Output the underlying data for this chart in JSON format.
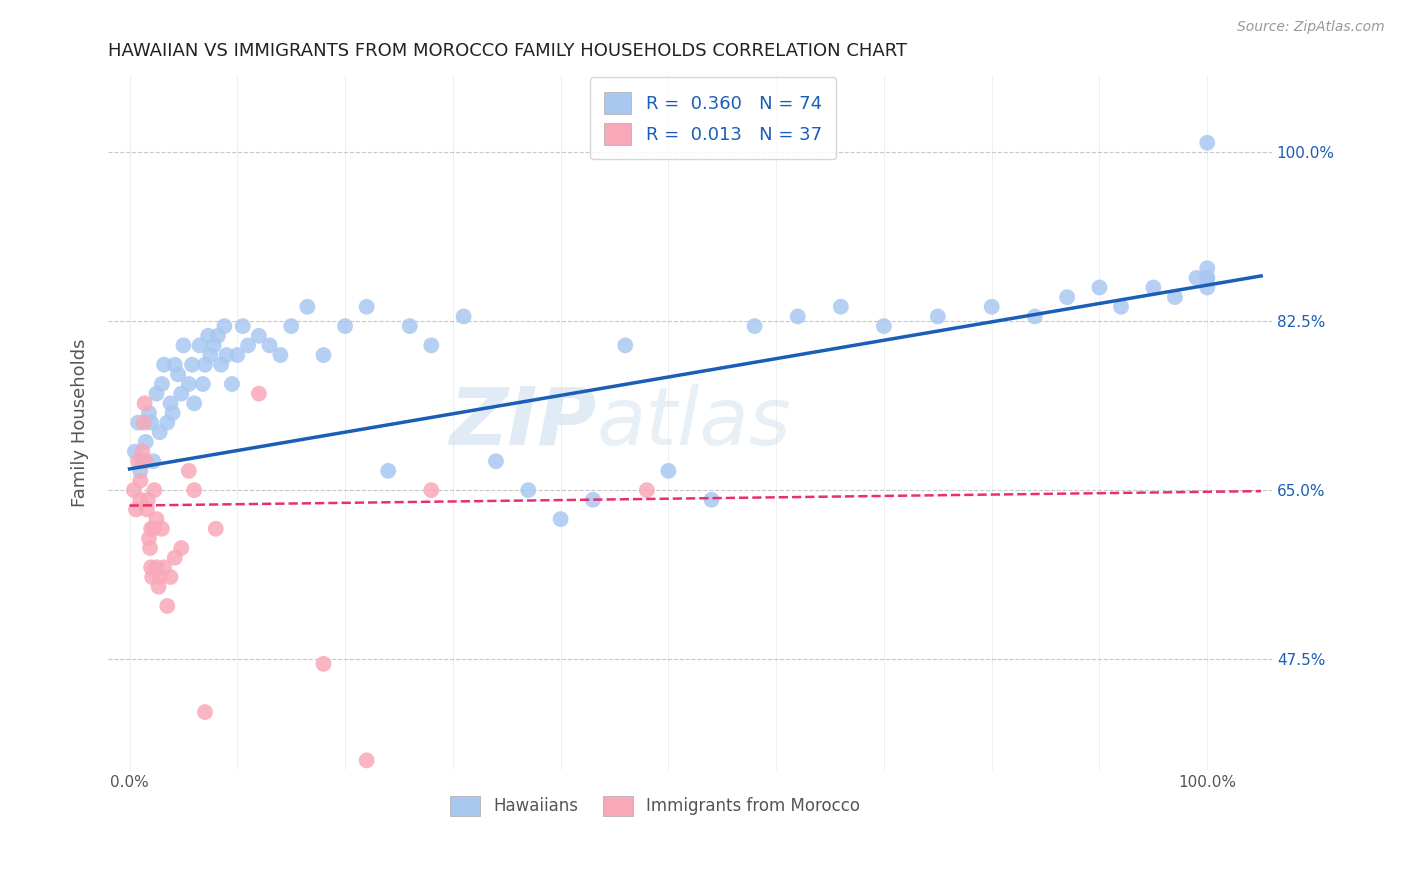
{
  "title": "HAWAIIAN VS IMMIGRANTS FROM MOROCCO FAMILY HOUSEHOLDS CORRELATION CHART",
  "source": "Source: ZipAtlas.com",
  "ylabel": "Family Households",
  "xlabel": "",
  "x_ticks": [
    0.0,
    0.1,
    0.2,
    0.3,
    0.4,
    0.5,
    0.6,
    0.7,
    0.8,
    0.9,
    1.0
  ],
  "y_tick_labels": [
    "47.5%",
    "65.0%",
    "82.5%",
    "100.0%"
  ],
  "y_ticks": [
    0.475,
    0.65,
    0.825,
    1.0
  ],
  "xlim": [
    -0.02,
    1.06
  ],
  "ylim": [
    0.36,
    1.08
  ],
  "legend_labels": [
    "Hawaiians",
    "Immigrants from Morocco"
  ],
  "R_hawaiian": 0.36,
  "N_hawaiian": 74,
  "R_morocco": 0.013,
  "N_morocco": 37,
  "hawaiian_color": "#a8c8f0",
  "morocco_color": "#f8a8b8",
  "trend_hawaiian_color": "#1a5eb8",
  "trend_morocco_color": "#e83070",
  "background_color": "#ffffff",
  "grid_color": "#c8c8c8",
  "watermark_zip": "ZIP",
  "watermark_atlas": "atlas",
  "hawaiian_x": [
    0.005,
    0.008,
    0.01,
    0.012,
    0.015,
    0.018,
    0.02,
    0.022,
    0.025,
    0.028,
    0.03,
    0.032,
    0.035,
    0.038,
    0.04,
    0.042,
    0.045,
    0.048,
    0.05,
    0.055,
    0.058,
    0.06,
    0.065,
    0.068,
    0.07,
    0.073,
    0.075,
    0.078,
    0.082,
    0.085,
    0.088,
    0.09,
    0.095,
    0.1,
    0.105,
    0.11,
    0.12,
    0.13,
    0.14,
    0.15,
    0.165,
    0.18,
    0.2,
    0.22,
    0.24,
    0.26,
    0.28,
    0.31,
    0.34,
    0.37,
    0.4,
    0.43,
    0.46,
    0.5,
    0.54,
    0.58,
    0.62,
    0.66,
    0.7,
    0.75,
    0.8,
    0.84,
    0.87,
    0.9,
    0.92,
    0.95,
    0.97,
    0.99,
    1.0,
    1.0,
    1.0,
    1.0,
    1.0,
    1.0
  ],
  "hawaiian_y": [
    0.69,
    0.72,
    0.67,
    0.68,
    0.7,
    0.73,
    0.72,
    0.68,
    0.75,
    0.71,
    0.76,
    0.78,
    0.72,
    0.74,
    0.73,
    0.78,
    0.77,
    0.75,
    0.8,
    0.76,
    0.78,
    0.74,
    0.8,
    0.76,
    0.78,
    0.81,
    0.79,
    0.8,
    0.81,
    0.78,
    0.82,
    0.79,
    0.76,
    0.79,
    0.82,
    0.8,
    0.81,
    0.8,
    0.79,
    0.82,
    0.84,
    0.79,
    0.82,
    0.84,
    0.67,
    0.82,
    0.8,
    0.83,
    0.68,
    0.65,
    0.62,
    0.64,
    0.8,
    0.67,
    0.64,
    0.82,
    0.83,
    0.84,
    0.82,
    0.83,
    0.84,
    0.83,
    0.85,
    0.86,
    0.84,
    0.86,
    0.85,
    0.87,
    0.87,
    0.87,
    0.86,
    0.87,
    0.88,
    1.01
  ],
  "morocco_x": [
    0.004,
    0.006,
    0.008,
    0.01,
    0.01,
    0.012,
    0.013,
    0.014,
    0.015,
    0.016,
    0.017,
    0.018,
    0.019,
    0.02,
    0.02,
    0.021,
    0.022,
    0.023,
    0.025,
    0.025,
    0.027,
    0.028,
    0.03,
    0.032,
    0.035,
    0.038,
    0.042,
    0.048,
    0.055,
    0.06,
    0.07,
    0.08,
    0.12,
    0.18,
    0.22,
    0.28,
    0.48
  ],
  "morocco_y": [
    0.65,
    0.63,
    0.68,
    0.66,
    0.64,
    0.69,
    0.72,
    0.74,
    0.68,
    0.63,
    0.64,
    0.6,
    0.59,
    0.57,
    0.61,
    0.56,
    0.61,
    0.65,
    0.57,
    0.62,
    0.55,
    0.56,
    0.61,
    0.57,
    0.53,
    0.56,
    0.58,
    0.59,
    0.67,
    0.65,
    0.42,
    0.61,
    0.75,
    0.47,
    0.37,
    0.65,
    0.65
  ],
  "trend_h_x0": 0.0,
  "trend_h_y0": 0.672,
  "trend_h_x1": 1.05,
  "trend_h_y1": 0.872,
  "trend_m_x0": 0.0,
  "trend_m_y0": 0.634,
  "trend_m_x1": 1.05,
  "trend_m_y1": 0.649
}
